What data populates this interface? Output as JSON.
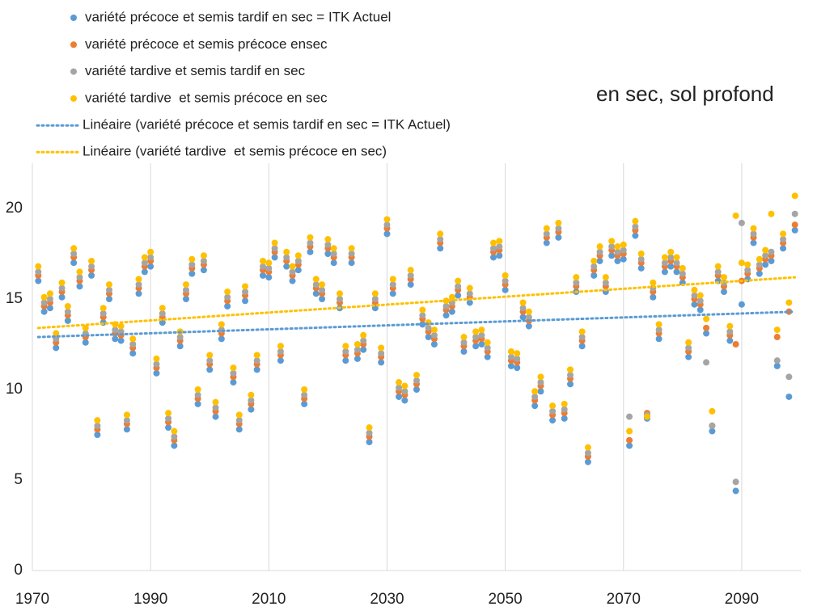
{
  "chart_data": {
    "type": "scatter",
    "annotation": "en sec, sol profond",
    "x": [
      1971,
      1972,
      1973,
      1974,
      1975,
      1976,
      1977,
      1978,
      1979,
      1980,
      1981,
      1982,
      1983,
      1984,
      1985,
      1986,
      1987,
      1988,
      1989,
      1990,
      1991,
      1992,
      1993,
      1994,
      1995,
      1996,
      1997,
      1998,
      1999,
      2000,
      2001,
      2002,
      2003,
      2004,
      2005,
      2006,
      2007,
      2008,
      2009,
      2010,
      2011,
      2012,
      2013,
      2014,
      2015,
      2016,
      2017,
      2018,
      2019,
      2020,
      2021,
      2022,
      2023,
      2024,
      2025,
      2026,
      2027,
      2028,
      2029,
      2030,
      2031,
      2032,
      2033,
      2034,
      2035,
      2036,
      2037,
      2038,
      2039,
      2040,
      2041,
      2042,
      2043,
      2044,
      2045,
      2046,
      2047,
      2048,
      2049,
      2050,
      2051,
      2052,
      2053,
      2054,
      2055,
      2056,
      2057,
      2058,
      2059,
      2060,
      2061,
      2062,
      2063,
      2064,
      2065,
      2066,
      2067,
      2068,
      2069,
      2070,
      2071,
      2072,
      2073,
      2074,
      2075,
      2076,
      2077,
      2078,
      2079,
      2080,
      2081,
      2082,
      2083,
      2084,
      2085,
      2086,
      2087,
      2088,
      2089,
      2090,
      2091,
      2092,
      2093,
      2094,
      2095,
      2096,
      2097,
      2098,
      2099
    ],
    "series": [
      {
        "name": "variété précoce et semis tardif en sec = ITK Actuel",
        "color": "#5b9bd5",
        "values": [
          16.0,
          14.3,
          14.5,
          12.3,
          15.1,
          13.8,
          17.0,
          15.7,
          12.6,
          16.3,
          7.5,
          13.7,
          15.0,
          12.8,
          12.7,
          7.8,
          12.0,
          15.3,
          16.5,
          16.8,
          10.9,
          13.7,
          7.9,
          6.9,
          12.4,
          15.0,
          16.4,
          9.2,
          16.6,
          11.1,
          8.5,
          12.8,
          14.6,
          10.4,
          7.8,
          14.9,
          8.9,
          11.1,
          16.3,
          16.2,
          17.3,
          11.6,
          16.8,
          16.0,
          16.6,
          9.2,
          17.6,
          15.3,
          15.0,
          17.5,
          17.0,
          14.5,
          11.6,
          17.0,
          11.7,
          12.2,
          7.1,
          14.5,
          11.5,
          18.6,
          15.3,
          9.6,
          9.4,
          15.8,
          10.0,
          13.6,
          12.9,
          12.5,
          17.8,
          14.1,
          14.3,
          15.2,
          12.1,
          14.8,
          12.4,
          12.5,
          11.8,
          17.3,
          17.4,
          15.5,
          11.3,
          11.2,
          14.0,
          13.5,
          9.1,
          9.9,
          18.1,
          8.3,
          18.4,
          8.4,
          10.3,
          15.4,
          12.4,
          6.0,
          16.3,
          17.1,
          15.4,
          17.4,
          17.1,
          17.2,
          6.9,
          18.5,
          16.7,
          8.4,
          15.1,
          12.8,
          16.5,
          16.8,
          16.5,
          15.9,
          11.8,
          14.7,
          14.4,
          13.1,
          7.7,
          16.0,
          15.4,
          12.7,
          4.4,
          14.7,
          16.1,
          18.1,
          16.4,
          16.9,
          17.1,
          11.3,
          17.8,
          9.6,
          18.8
        ]
      },
      {
        "name": "variété précoce et semis précoce ensec",
        "color": "#ed7d31",
        "values": [
          16.3,
          14.6,
          14.8,
          12.6,
          15.4,
          14.1,
          17.3,
          16.0,
          12.9,
          16.6,
          7.8,
          14.0,
          15.3,
          13.1,
          13.0,
          8.1,
          12.3,
          15.6,
          16.8,
          17.1,
          11.2,
          14.0,
          8.2,
          7.2,
          12.7,
          15.3,
          16.7,
          9.5,
          16.9,
          11.4,
          8.8,
          13.1,
          14.9,
          10.7,
          8.1,
          15.2,
          9.2,
          11.4,
          16.6,
          16.5,
          17.6,
          11.9,
          17.1,
          16.3,
          16.9,
          9.5,
          17.9,
          15.6,
          15.3,
          17.8,
          17.3,
          14.8,
          11.9,
          17.3,
          12.0,
          12.5,
          7.4,
          14.8,
          11.8,
          18.9,
          15.6,
          9.9,
          9.7,
          16.1,
          10.3,
          13.9,
          13.2,
          12.8,
          18.1,
          14.4,
          14.6,
          15.5,
          12.4,
          15.1,
          12.7,
          12.8,
          12.1,
          17.6,
          17.7,
          15.8,
          11.6,
          11.5,
          14.3,
          13.8,
          9.4,
          10.2,
          18.4,
          8.6,
          18.7,
          8.7,
          10.6,
          15.7,
          12.7,
          6.3,
          16.6,
          17.4,
          15.7,
          17.7,
          17.4,
          17.5,
          7.2,
          18.8,
          17.0,
          8.7,
          15.4,
          13.1,
          16.8,
          17.1,
          16.8,
          16.2,
          12.1,
          15.0,
          14.7,
          13.4,
          8.0,
          16.3,
          15.7,
          13.0,
          12.5,
          16.0,
          16.4,
          18.4,
          16.7,
          17.2,
          17.4,
          12.9,
          18.1,
          14.3,
          19.1
        ]
      },
      {
        "name": "variété tardive et semis tardif en sec",
        "color": "#a5a5a5",
        "values": [
          16.5,
          14.8,
          15.0,
          12.8,
          15.6,
          14.3,
          17.5,
          16.2,
          13.1,
          16.8,
          8.0,
          14.2,
          15.5,
          13.3,
          13.2,
          8.3,
          12.5,
          15.8,
          17.0,
          17.3,
          11.4,
          14.2,
          8.4,
          7.4,
          12.9,
          15.5,
          16.9,
          9.7,
          17.1,
          11.6,
          9.0,
          13.3,
          15.1,
          10.9,
          8.3,
          15.4,
          9.4,
          11.6,
          16.8,
          16.7,
          17.8,
          12.1,
          17.3,
          16.5,
          17.1,
          9.7,
          18.1,
          15.8,
          15.5,
          18.0,
          17.5,
          15.0,
          12.1,
          17.5,
          12.2,
          12.7,
          7.6,
          15.0,
          12.0,
          19.1,
          15.8,
          10.1,
          9.9,
          16.3,
          10.5,
          14.1,
          13.4,
          13.0,
          18.3,
          14.6,
          14.8,
          15.7,
          12.6,
          15.3,
          12.9,
          13.0,
          12.3,
          17.8,
          17.9,
          16.0,
          11.8,
          11.7,
          14.5,
          14.0,
          9.6,
          10.4,
          18.6,
          8.8,
          18.9,
          8.9,
          10.8,
          15.9,
          12.9,
          6.5,
          16.8,
          17.6,
          15.9,
          17.9,
          17.6,
          17.7,
          8.5,
          19.0,
          17.2,
          8.6,
          15.6,
          13.3,
          17.0,
          17.3,
          17.0,
          16.4,
          12.3,
          15.2,
          14.9,
          11.5,
          8.0,
          16.5,
          15.9,
          13.2,
          4.9,
          19.2,
          16.6,
          18.6,
          16.9,
          17.4,
          17.6,
          11.6,
          18.3,
          10.7,
          19.7
        ]
      },
      {
        "name": "variété tardive  et semis précoce en sec",
        "color": "#ffc000",
        "values": [
          16.8,
          15.1,
          15.3,
          13.1,
          15.9,
          14.6,
          17.8,
          16.5,
          13.4,
          17.1,
          8.3,
          14.5,
          15.8,
          13.6,
          13.5,
          8.6,
          12.8,
          16.1,
          17.3,
          17.6,
          11.7,
          14.5,
          8.7,
          7.7,
          13.2,
          15.8,
          17.2,
          10.0,
          17.4,
          11.9,
          9.3,
          13.6,
          15.4,
          11.2,
          8.6,
          15.7,
          9.7,
          11.9,
          17.1,
          17.0,
          18.1,
          12.4,
          17.6,
          16.8,
          17.4,
          10.0,
          18.4,
          16.1,
          15.8,
          18.3,
          17.8,
          15.3,
          12.4,
          17.8,
          12.5,
          13.0,
          7.9,
          15.3,
          12.3,
          19.4,
          16.1,
          10.4,
          10.2,
          16.6,
          10.8,
          14.4,
          13.7,
          13.3,
          18.6,
          14.9,
          15.1,
          16.0,
          12.9,
          15.6,
          13.2,
          13.3,
          12.6,
          18.1,
          18.2,
          16.3,
          12.1,
          12.0,
          14.8,
          14.3,
          9.9,
          10.7,
          18.9,
          9.1,
          19.2,
          9.2,
          11.1,
          16.2,
          13.2,
          6.8,
          17.1,
          17.9,
          16.2,
          18.2,
          17.9,
          18.0,
          7.7,
          19.3,
          17.5,
          8.5,
          15.9,
          13.6,
          17.3,
          17.6,
          17.3,
          16.7,
          12.6,
          15.5,
          15.2,
          13.9,
          8.8,
          16.8,
          16.2,
          13.5,
          19.6,
          17.0,
          16.9,
          18.9,
          17.2,
          17.7,
          19.7,
          13.3,
          18.6,
          14.8,
          20.7
        ]
      }
    ],
    "trendlines": [
      {
        "name": "Linéaire (variété précoce et semis tardif en sec = ITK Actuel)",
        "color": "#5b9bd5",
        "x": [
          1971,
          2099
        ],
        "values": [
          12.9,
          14.3
        ]
      },
      {
        "name": "Linéaire (variété tardive  et semis précoce en sec)",
        "color": "#ffc000",
        "x": [
          1971,
          2099
        ],
        "values": [
          13.4,
          16.2
        ]
      }
    ],
    "xlim": [
      1970,
      2100
    ],
    "ylim": [
      0,
      22.5
    ],
    "xticks": [
      1970,
      1990,
      2010,
      2030,
      2050,
      2070,
      2090
    ],
    "yticks": [
      0,
      5,
      10,
      15,
      20
    ],
    "grid": "x"
  }
}
